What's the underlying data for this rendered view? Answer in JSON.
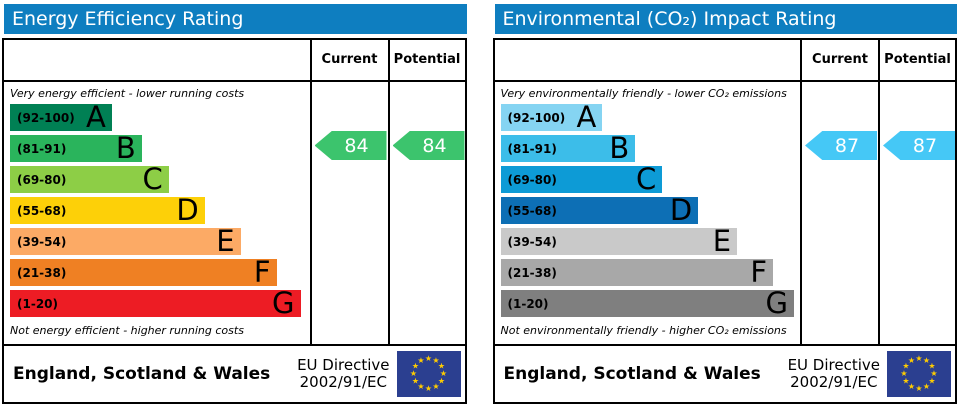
{
  "colors": {
    "header_bg": "#0e7ec0",
    "border": "#000000",
    "eu_flag_bg": "#2b3f90",
    "eu_star": "#ffcc00"
  },
  "panels": [
    {
      "title": "Energy Efficiency Rating",
      "columns": {
        "current": "Current",
        "potential": "Potential"
      },
      "top_note": "Very energy efficient - lower running costs",
      "bottom_note": "Not energy efficient - higher running costs",
      "bands": [
        {
          "letter": "A",
          "range": "(92-100)",
          "color": "#008054",
          "width_pct": 34
        },
        {
          "letter": "B",
          "range": "(81-91)",
          "color": "#2ab45c",
          "width_pct": 44
        },
        {
          "letter": "C",
          "range": "(69-80)",
          "color": "#8dce46",
          "width_pct": 53
        },
        {
          "letter": "D",
          "range": "(55-68)",
          "color": "#fdd008",
          "width_pct": 65
        },
        {
          "letter": "E",
          "range": "(39-54)",
          "color": "#fcaa65",
          "width_pct": 77
        },
        {
          "letter": "F",
          "range": "(21-38)",
          "color": "#ef8023",
          "width_pct": 89
        },
        {
          "letter": "G",
          "range": "(1-20)",
          "color": "#ed1c24",
          "width_pct": 97
        }
      ],
      "current": {
        "value": "84",
        "color": "#3cc46d"
      },
      "potential": {
        "value": "84",
        "color": "#3cc46d"
      },
      "footer": {
        "region": "England, Scotland & Wales",
        "directive_line1": "EU Directive",
        "directive_line2": "2002/91/EC"
      }
    },
    {
      "title": "Environmental (CO₂) Impact Rating",
      "columns": {
        "current": "Current",
        "potential": "Potential"
      },
      "top_note": "Very environmentally friendly - lower CO₂ emissions",
      "bottom_note": "Not environmentally friendly - higher CO₂ emissions",
      "bands": [
        {
          "letter": "A",
          "range": "(92-100)",
          "color": "#85d4f2",
          "width_pct": 34
        },
        {
          "letter": "B",
          "range": "(81-91)",
          "color": "#3cbde9",
          "width_pct": 45
        },
        {
          "letter": "C",
          "range": "(69-80)",
          "color": "#0d9bd6",
          "width_pct": 54
        },
        {
          "letter": "D",
          "range": "(55-68)",
          "color": "#0d6fb5",
          "width_pct": 66
        },
        {
          "letter": "E",
          "range": "(39-54)",
          "color": "#c9c9c9",
          "width_pct": 79
        },
        {
          "letter": "F",
          "range": "(21-38)",
          "color": "#a8a8a8",
          "width_pct": 91
        },
        {
          "letter": "G",
          "range": "(1-20)",
          "color": "#7f7f7f",
          "width_pct": 98
        }
      ],
      "current": {
        "value": "87",
        "color": "#45c8f6"
      },
      "potential": {
        "value": "87",
        "color": "#45c8f6"
      },
      "footer": {
        "region": "England, Scotland & Wales",
        "directive_line1": "EU Directive",
        "directive_line2": "2002/91/EC"
      }
    }
  ],
  "chart_data": [
    {
      "type": "bar",
      "title": "Energy Efficiency Rating",
      "subtitle_top": "Very energy efficient - lower running costs",
      "subtitle_bottom": "Not energy efficient - higher running costs",
      "categories": [
        "A",
        "B",
        "C",
        "D",
        "E",
        "F",
        "G"
      ],
      "band_ranges": [
        "92-100",
        "81-91",
        "69-80",
        "55-68",
        "39-54",
        "21-38",
        "1-20"
      ],
      "series": [
        {
          "name": "Current",
          "values": [
            84
          ],
          "band": "B"
        },
        {
          "name": "Potential",
          "values": [
            84
          ],
          "band": "B"
        }
      ],
      "value_range": [
        1,
        100
      ],
      "region": "England, Scotland & Wales",
      "directive": "EU Directive 2002/91/EC"
    },
    {
      "type": "bar",
      "title": "Environmental (CO₂) Impact Rating",
      "subtitle_top": "Very environmentally friendly - lower CO₂ emissions",
      "subtitle_bottom": "Not environmentally friendly - higher CO₂ emissions",
      "categories": [
        "A",
        "B",
        "C",
        "D",
        "E",
        "F",
        "G"
      ],
      "band_ranges": [
        "92-100",
        "81-91",
        "69-80",
        "55-68",
        "39-54",
        "21-38",
        "1-20"
      ],
      "series": [
        {
          "name": "Current",
          "values": [
            87
          ],
          "band": "B"
        },
        {
          "name": "Potential",
          "values": [
            87
          ],
          "band": "B"
        }
      ],
      "value_range": [
        1,
        100
      ],
      "region": "England, Scotland & Wales",
      "directive": "EU Directive 2002/91/EC"
    }
  ]
}
